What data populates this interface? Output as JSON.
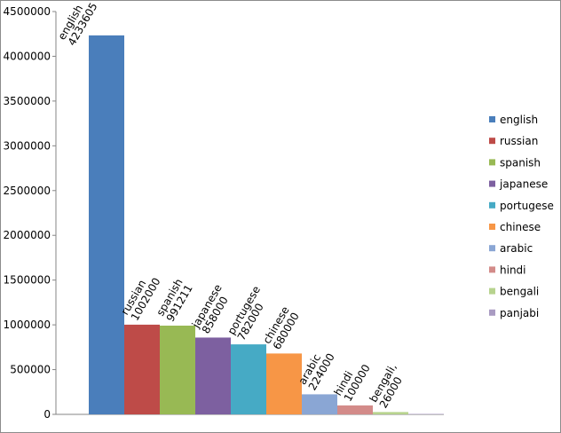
{
  "chart_data": {
    "type": "bar",
    "categories": [
      "english",
      "russian",
      "spanish",
      "japanese",
      "portugese",
      "chinese",
      "arabic",
      "hindi",
      "bengali",
      "panjabi"
    ],
    "series": [
      {
        "name": "english",
        "color": "#4a7ebb"
      },
      {
        "name": "russian",
        "color": "#be4b48"
      },
      {
        "name": "spanish",
        "color": "#98b954"
      },
      {
        "name": "japanese",
        "color": "#7d60a0"
      },
      {
        "name": "portugese",
        "color": "#46aac5"
      },
      {
        "name": "chinese",
        "color": "#f79646"
      },
      {
        "name": "arabic",
        "color": "#8aa6d4"
      },
      {
        "name": "hindi",
        "color": "#d38b89"
      },
      {
        "name": "bengali",
        "color": "#b7d38e"
      },
      {
        "name": "panjabi",
        "color": "#a99bc2"
      }
    ],
    "values": [
      4233605,
      1002000,
      991211,
      858000,
      782000,
      680000,
      224000,
      100000,
      26000,
      5000
    ],
    "value_labels": [
      [
        "english",
        "4233605"
      ],
      [
        "russian",
        "1002000"
      ],
      [
        "spanish",
        "991211"
      ],
      [
        "japanese",
        "858000"
      ],
      [
        "portugese",
        "782000"
      ],
      [
        "chinese",
        "680000"
      ],
      [
        "arabic",
        "224000"
      ],
      [
        "hindi",
        "100000"
      ],
      [
        "bengali,",
        "26000"
      ],
      null
    ],
    "ylim": [
      0,
      4500000
    ],
    "yticks": [
      0,
      500000,
      1000000,
      1500000,
      2000000,
      2500000,
      3000000,
      3500000,
      4000000,
      4500000
    ],
    "legend": "right"
  }
}
